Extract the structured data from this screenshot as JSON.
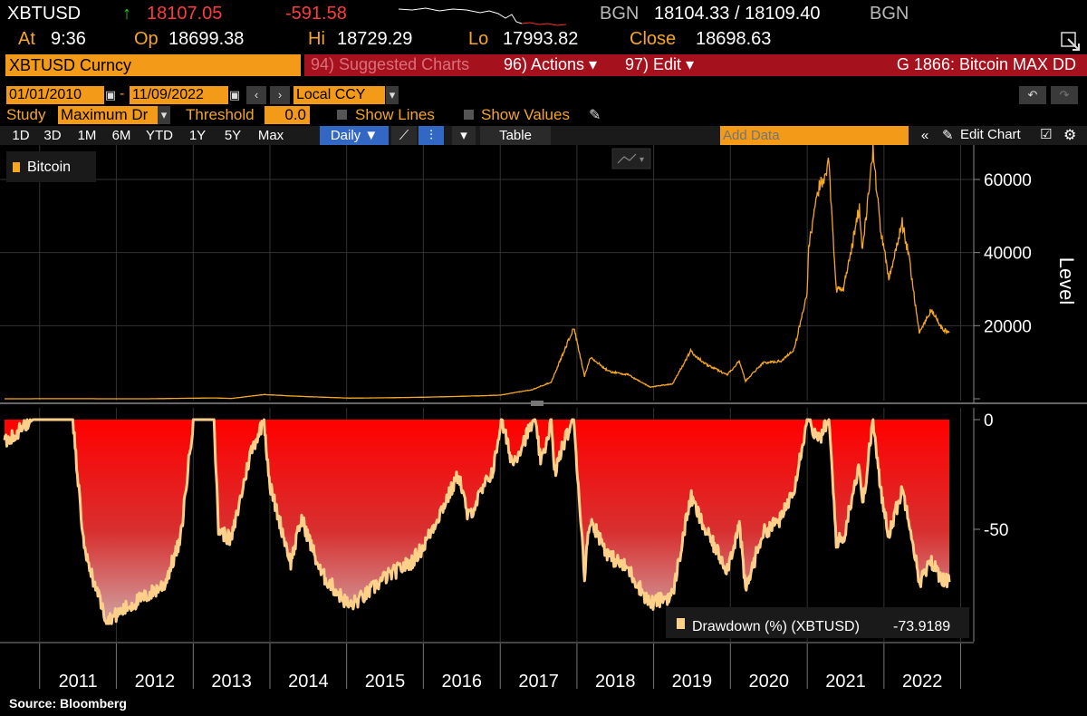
{
  "quote": {
    "ticker": "XBTUSD",
    "arrow": "↑",
    "last": "18107.05",
    "change": "-591.58",
    "src1": "BGN",
    "bidask": "18104.33 / 18109.40",
    "src2": "BGN",
    "at_label": "At",
    "at": "9:36",
    "op_label": "Op",
    "op": "18699.38",
    "hi_label": "Hi",
    "hi": "18729.29",
    "lo_label": "Lo",
    "lo": "17993.82",
    "close_label": "Close",
    "close": "18698.63"
  },
  "toolbar": {
    "security": "XBTUSD Curncy",
    "suggested": "94) Suggested Charts",
    "actions": "96) Actions ▾",
    "edit": "97) Edit ▾",
    "chart_title": "G 1866: Bitcoin MAX DD"
  },
  "dates": {
    "start": "01/01/2010",
    "end": "11/09/2022",
    "currency": "Local CCY"
  },
  "study": {
    "study_label": "Study",
    "study_value": "Maximum Dr",
    "threshold_label": "Threshold",
    "threshold_value": "0.0",
    "show_lines": "Show Lines",
    "show_values": "Show Values"
  },
  "periods": [
    "1D",
    "3D",
    "1M",
    "6M",
    "YTD",
    "1Y",
    "5Y",
    "Max"
  ],
  "frequency": "Daily ▼",
  "table_label": "Table",
  "add_data_placeholder": "Add Data",
  "edit_chart": "Edit Chart",
  "source": "Source: Bloomberg",
  "colors": {
    "price_line": "#f5a623",
    "drawdown_fill_top": "#ff0000",
    "drawdown_fill_bottom": "#d1a0a0",
    "drawdown_line": "#ffd08a",
    "toolbar_red": "#a5111d",
    "accent_orange": "#f39a18"
  },
  "chart_data": [
    {
      "type": "line",
      "legend": "Bitcoin",
      "ylabel": "Level",
      "ylim": [
        0,
        67000
      ],
      "yticks": [
        20000,
        40000,
        60000
      ],
      "x": [
        "2010-07-18",
        "2011-06-08",
        "2011-11-18",
        "2012-06-01",
        "2013-04-10",
        "2013-07-01",
        "2013-12-04",
        "2014-06-01",
        "2015-01-14",
        "2015-07-01",
        "2016-01-01",
        "2016-07-01",
        "2017-01-01",
        "2017-06-01",
        "2017-09-01",
        "2017-12-17",
        "2018-02-06",
        "2018-03-05",
        "2018-06-01",
        "2018-09-01",
        "2018-12-15",
        "2019-04-01",
        "2019-06-26",
        "2019-09-01",
        "2019-12-17",
        "2020-02-13",
        "2020-03-13",
        "2020-06-01",
        "2020-09-01",
        "2020-11-01",
        "2020-12-31",
        "2021-01-08",
        "2021-02-21",
        "2021-04-14",
        "2021-05-19",
        "2021-06-22",
        "2021-08-01",
        "2021-09-06",
        "2021-09-21",
        "2021-11-10",
        "2021-12-15",
        "2022-01-24",
        "2022-03-29",
        "2022-05-01",
        "2022-06-18",
        "2022-08-15",
        "2022-09-30",
        "2022-11-08"
      ],
      "y": [
        0.08,
        30,
        2.5,
        5.5,
        230,
        90,
        1150,
        640,
        180,
        270,
        430,
        670,
        990,
        2500,
        4600,
        19500,
        6200,
        11400,
        7500,
        6600,
        3200,
        4100,
        13000,
        9600,
        6600,
        10300,
        4900,
        9700,
        10400,
        13700,
        29000,
        41000,
        57000,
        64500,
        30000,
        30000,
        41500,
        52500,
        40500,
        68000,
        46500,
        33000,
        48000,
        38500,
        18000,
        24400,
        19400,
        18100
      ]
    },
    {
      "type": "area",
      "series": [
        {
          "name": "Drawdown (%) (XBTUSD)",
          "last": "-73.9189"
        }
      ],
      "ylim": [
        -93,
        0
      ],
      "yticks": [
        0,
        -50
      ],
      "x": [
        "2010-07-18",
        "2010-12-01",
        "2011-02-10",
        "2011-06-08",
        "2011-08-01",
        "2011-11-18",
        "2012-03-01",
        "2012-06-01",
        "2012-08-17",
        "2012-11-01",
        "2013-01-01",
        "2013-04-10",
        "2013-05-01",
        "2013-07-01",
        "2013-10-01",
        "2013-12-04",
        "2014-01-01",
        "2014-04-10",
        "2014-06-01",
        "2014-09-01",
        "2015-01-14",
        "2015-04-01",
        "2015-07-01",
        "2015-11-04",
        "2016-01-01",
        "2016-06-18",
        "2016-08-01",
        "2016-12-01",
        "2017-01-05",
        "2017-03-01",
        "2017-06-12",
        "2017-07-16",
        "2017-09-01",
        "2017-09-15",
        "2017-11-01",
        "2017-12-17",
        "2018-02-06",
        "2018-03-05",
        "2018-06-01",
        "2018-09-01",
        "2018-12-15",
        "2019-04-01",
        "2019-06-26",
        "2019-09-01",
        "2019-12-17",
        "2020-02-13",
        "2020-03-13",
        "2020-06-01",
        "2020-09-01",
        "2020-11-01",
        "2020-12-31",
        "2021-01-08",
        "2021-02-21",
        "2021-04-14",
        "2021-05-19",
        "2021-06-22",
        "2021-08-01",
        "2021-09-06",
        "2021-09-21",
        "2021-11-10",
        "2021-12-15",
        "2022-01-24",
        "2022-03-29",
        "2022-05-01",
        "2022-06-18",
        "2022-08-15",
        "2022-09-30",
        "2022-11-08"
      ],
      "y": [
        -10,
        0,
        0,
        0,
        -60,
        -92,
        -85,
        -80,
        -75,
        -55,
        0,
        0,
        -50,
        -55,
        -15,
        0,
        -30,
        -65,
        -45,
        -70,
        -85,
        -80,
        -72,
        -65,
        -58,
        -25,
        -45,
        -22,
        0,
        -20,
        0,
        -20,
        0,
        -25,
        -10,
        0,
        -70,
        -45,
        -62,
        -68,
        -84,
        -80,
        -35,
        -50,
        -68,
        -48,
        -78,
        -52,
        -45,
        -30,
        0,
        0,
        -10,
        0,
        -55,
        -55,
        -35,
        -20,
        -40,
        0,
        -32,
        -52,
        -32,
        -45,
        -74,
        -65,
        -72,
        -74
      ]
    },
    {
      "type": "axis",
      "x_tick_labels": [
        "2011",
        "2012",
        "2013",
        "2014",
        "2015",
        "2016",
        "2017",
        "2018",
        "2019",
        "2020",
        "2021",
        "2022"
      ]
    }
  ]
}
